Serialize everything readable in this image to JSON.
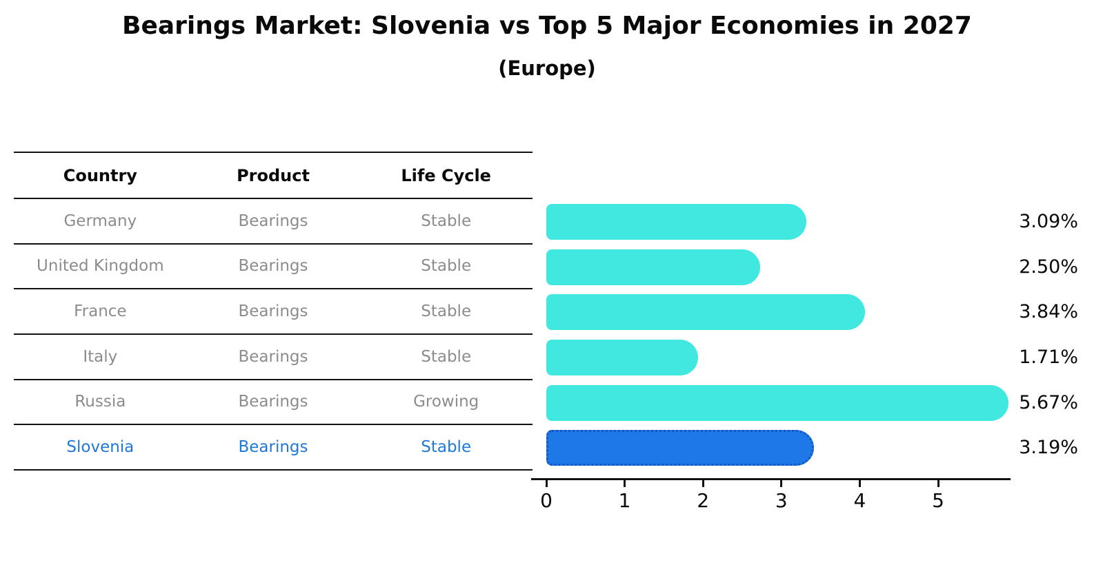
{
  "title": "Bearings Market: Slovenia vs Top 5 Major Economies in 2027",
  "subtitle": "(Europe)",
  "table": {
    "headers": [
      "Country",
      "Product",
      "Life Cycle"
    ],
    "rows": [
      {
        "country": "Germany",
        "product": "Bearings",
        "life_cycle": "Stable",
        "highlighted": false
      },
      {
        "country": "United Kingdom",
        "product": "Bearings",
        "life_cycle": "Stable",
        "highlighted": false
      },
      {
        "country": "France",
        "product": "Bearings",
        "life_cycle": "Stable",
        "highlighted": false
      },
      {
        "country": "Italy",
        "product": "Bearings",
        "life_cycle": "Stable",
        "highlighted": false
      },
      {
        "country": "Russia",
        "product": "Bearings",
        "life_cycle": "Growing",
        "highlighted": false
      },
      {
        "country": "Slovenia",
        "product": "Bearings",
        "life_cycle": "Stable",
        "highlighted": true
      }
    ]
  },
  "chart_data": {
    "type": "bar",
    "orientation": "horizontal",
    "title": "Bearings Market: Slovenia vs Top 5 Major Economies in 2027",
    "subtitle": "(Europe)",
    "categories": [
      "Germany",
      "United Kingdom",
      "France",
      "Italy",
      "Russia",
      "Slovenia"
    ],
    "values": [
      3.09,
      2.5,
      3.84,
      1.71,
      5.67,
      3.19
    ],
    "value_labels": [
      "3.09%",
      "2.50%",
      "3.84%",
      "1.71%",
      "5.67%",
      "3.19%"
    ],
    "x_ticks": [
      "0",
      "1",
      "2",
      "3",
      "4",
      "5"
    ],
    "xlim": [
      0,
      5.9
    ],
    "grid": false,
    "legend": "none",
    "bar_color": "#40e8e0",
    "highlight_index": 5,
    "highlight_bar_color": "#1e78e8",
    "highlight_border_color": "#1456c0",
    "highlight_text_color": "#1f78d8",
    "row_text_color": "#8c8c8c"
  }
}
